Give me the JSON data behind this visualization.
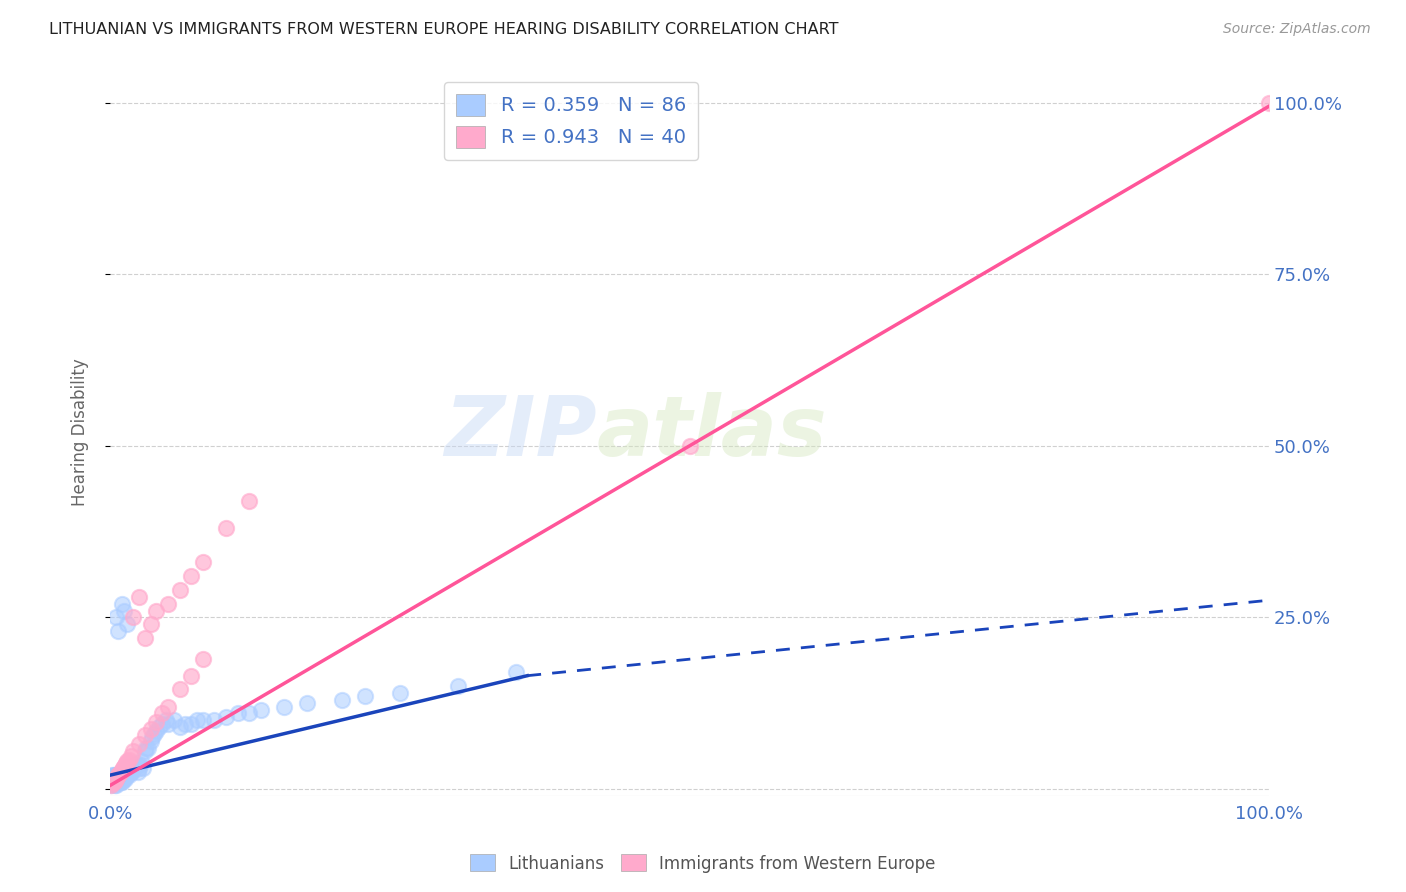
{
  "title": "LITHUANIAN VS IMMIGRANTS FROM WESTERN EUROPE HEARING DISABILITY CORRELATION CHART",
  "source": "Source: ZipAtlas.com",
  "ylabel": "Hearing Disability",
  "r_blue": 0.359,
  "n_blue": 86,
  "r_pink": 0.943,
  "n_pink": 40,
  "legend_label_blue": "Lithuanians",
  "legend_label_pink": "Immigrants from Western Europe",
  "watermark": "ZIPatlas",
  "bg_color": "#ffffff",
  "grid_color": "#d0d0d0",
  "title_color": "#222222",
  "axis_label_color": "#4472c4",
  "blue_scatter_color": "#aaccff",
  "pink_scatter_color": "#ffaacc",
  "blue_line_color": "#1a44bb",
  "pink_line_color": "#ff5599",
  "blue_scatter_x": [
    0.001,
    0.001,
    0.001,
    0.002,
    0.002,
    0.002,
    0.003,
    0.003,
    0.003,
    0.004,
    0.004,
    0.004,
    0.005,
    0.005,
    0.005,
    0.005,
    0.006,
    0.006,
    0.006,
    0.007,
    0.007,
    0.007,
    0.008,
    0.008,
    0.009,
    0.009,
    0.01,
    0.01,
    0.01,
    0.011,
    0.011,
    0.012,
    0.012,
    0.013,
    0.013,
    0.014,
    0.015,
    0.015,
    0.016,
    0.016,
    0.017,
    0.018,
    0.019,
    0.02,
    0.021,
    0.022,
    0.023,
    0.024,
    0.025,
    0.026,
    0.027,
    0.028,
    0.03,
    0.031,
    0.033,
    0.035,
    0.036,
    0.038,
    0.04,
    0.042,
    0.045,
    0.048,
    0.05,
    0.055,
    0.06,
    0.065,
    0.07,
    0.075,
    0.08,
    0.09,
    0.1,
    0.11,
    0.12,
    0.13,
    0.15,
    0.17,
    0.2,
    0.22,
    0.25,
    0.3,
    0.005,
    0.007,
    0.01,
    0.012,
    0.015,
    0.35
  ],
  "blue_scatter_y": [
    0.005,
    0.01,
    0.015,
    0.01,
    0.015,
    0.02,
    0.01,
    0.015,
    0.02,
    0.005,
    0.015,
    0.02,
    0.005,
    0.01,
    0.015,
    0.02,
    0.01,
    0.015,
    0.02,
    0.01,
    0.015,
    0.02,
    0.015,
    0.02,
    0.01,
    0.02,
    0.01,
    0.015,
    0.025,
    0.015,
    0.02,
    0.015,
    0.02,
    0.015,
    0.025,
    0.025,
    0.02,
    0.03,
    0.02,
    0.03,
    0.025,
    0.025,
    0.025,
    0.03,
    0.03,
    0.035,
    0.035,
    0.025,
    0.03,
    0.035,
    0.04,
    0.03,
    0.055,
    0.06,
    0.06,
    0.07,
    0.075,
    0.08,
    0.085,
    0.09,
    0.095,
    0.1,
    0.095,
    0.1,
    0.09,
    0.095,
    0.095,
    0.1,
    0.1,
    0.1,
    0.105,
    0.11,
    0.11,
    0.115,
    0.12,
    0.125,
    0.13,
    0.135,
    0.14,
    0.15,
    0.25,
    0.23,
    0.27,
    0.26,
    0.24,
    0.17
  ],
  "pink_scatter_x": [
    0.001,
    0.002,
    0.003,
    0.004,
    0.005,
    0.006,
    0.007,
    0.008,
    0.009,
    0.01,
    0.011,
    0.012,
    0.013,
    0.014,
    0.015,
    0.016,
    0.018,
    0.02,
    0.025,
    0.03,
    0.035,
    0.04,
    0.045,
    0.05,
    0.06,
    0.07,
    0.08,
    0.02,
    0.025,
    0.03,
    0.035,
    0.04,
    0.05,
    0.06,
    0.07,
    0.08,
    0.1,
    0.12,
    0.5,
    1.0
  ],
  "pink_scatter_y": [
    0.005,
    0.008,
    0.01,
    0.012,
    0.015,
    0.018,
    0.02,
    0.022,
    0.025,
    0.028,
    0.03,
    0.032,
    0.035,
    0.038,
    0.04,
    0.042,
    0.048,
    0.055,
    0.065,
    0.078,
    0.088,
    0.098,
    0.11,
    0.12,
    0.145,
    0.165,
    0.19,
    0.25,
    0.28,
    0.22,
    0.24,
    0.26,
    0.27,
    0.29,
    0.31,
    0.33,
    0.38,
    0.42,
    0.5,
    1.0
  ],
  "blue_line_x0": 0.0,
  "blue_line_y0": 0.02,
  "blue_line_x1": 0.36,
  "blue_line_y1": 0.165,
  "blue_line_x_dash_end": 1.0,
  "blue_line_y_dash_end": 0.275,
  "pink_line_x0": 0.0,
  "pink_line_y0": 0.005,
  "pink_line_x1": 1.0,
  "pink_line_y1": 0.995,
  "xlim": [
    0.0,
    1.0
  ],
  "ylim": [
    -0.01,
    1.05
  ],
  "yticks": [
    0.0,
    0.25,
    0.5,
    0.75,
    1.0
  ],
  "ytick_labels": [
    "",
    "25.0%",
    "50.0%",
    "75.0%",
    "100.0%"
  ],
  "xtick_labels": [
    "0.0%",
    "",
    "",
    "",
    "100.0%"
  ],
  "xtick_positions": [
    0.0,
    0.25,
    0.5,
    0.75,
    1.0
  ]
}
